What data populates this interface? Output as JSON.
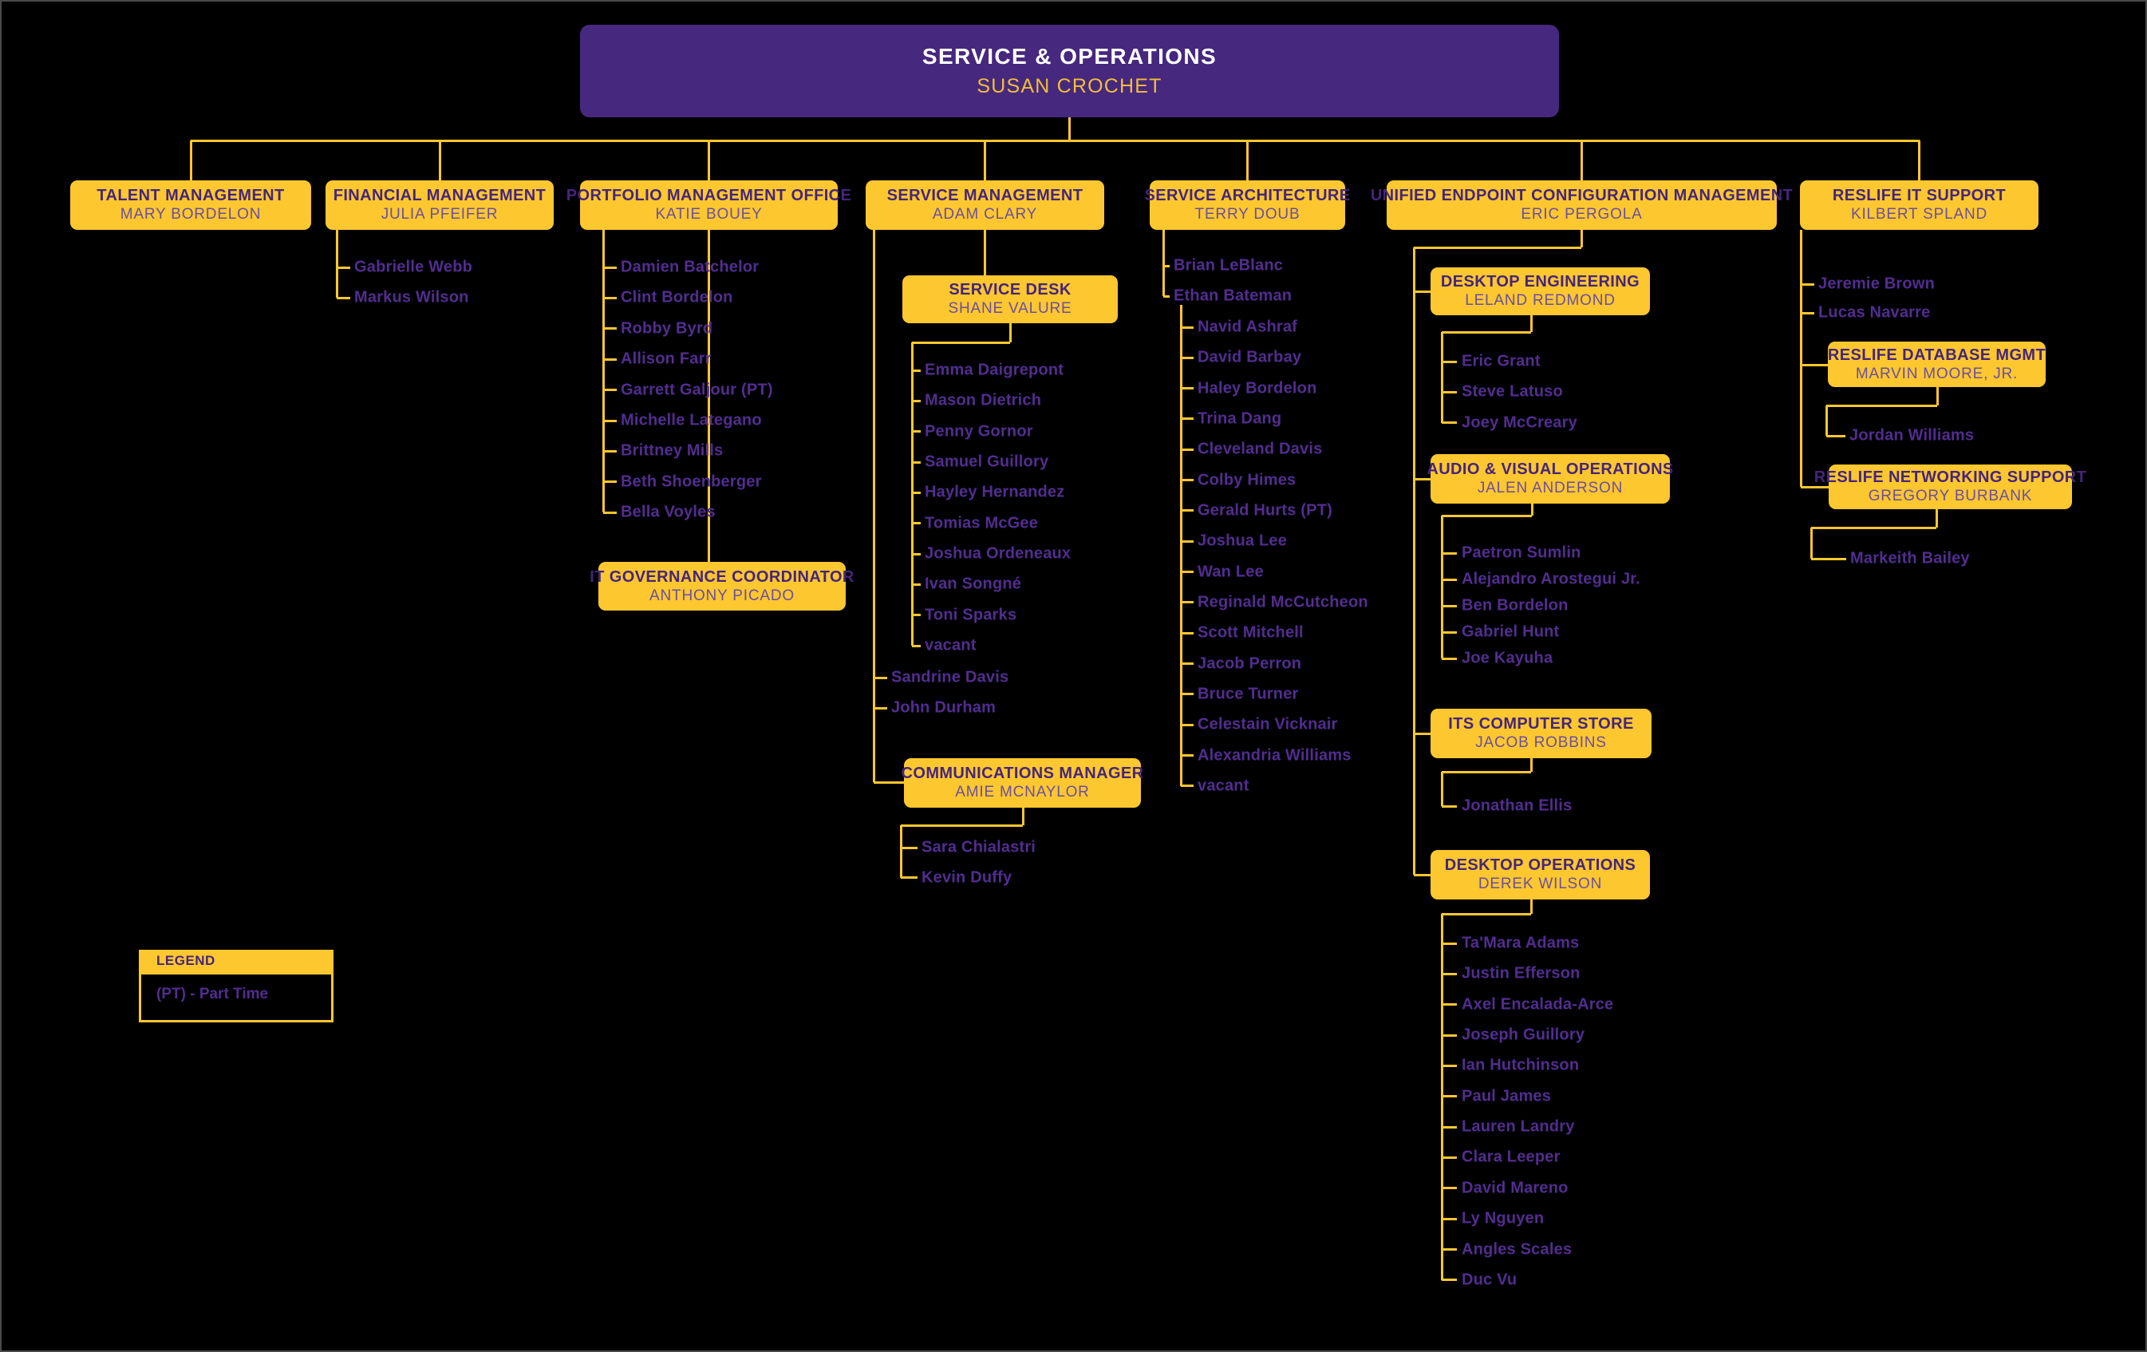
{
  "root": {
    "title": "SERVICE & OPERATIONS",
    "name": "SUSAN CROCHET"
  },
  "legend": {
    "title": "LEGEND",
    "items": [
      "(PT) - Part Time"
    ]
  },
  "colors": {
    "background": "#000000",
    "gold": "#FDC72F",
    "root_purple": "#46287E",
    "title_purple": "#45257C",
    "manager_purple": "#6A4EA0",
    "person_purple": "#522D90",
    "root_title_color": "#FFFFFF",
    "root_name_color": "#F2BE3A"
  },
  "departments": [
    {
      "title": "TALENT MANAGEMENT",
      "name": "MARY BORDELON",
      "reports": []
    },
    {
      "title": "FINANCIAL MANAGEMENT",
      "name": "JULIA PFEIFER",
      "reports": [
        "Gabrielle Webb",
        "Markus Wilson"
      ]
    },
    {
      "title": "PORTFOLIO MANAGEMENT OFFICE",
      "name": "KATIE BOUEY",
      "reports": [
        "Damien Batchelor",
        "Clint Bordelon",
        "Robby Byrd",
        "Allison Farr",
        "Garrett Galjour (PT)",
        "Michelle Lategano",
        "Brittney Mills",
        "Beth Shoenberger",
        "Bella Voyles"
      ],
      "sub_units": [
        {
          "title": "IT GOVERNANCE COORDINATOR",
          "name": "ANTHONY PICADO",
          "reports": []
        }
      ]
    },
    {
      "title": "SERVICE MANAGEMENT",
      "name": "ADAM CLARY",
      "reports": [
        "Sandrine Davis",
        "John Durham"
      ],
      "sub_units": [
        {
          "title": "SERVICE DESK",
          "name": "SHANE VALURE",
          "reports": [
            "Emma Daigrepont",
            "Mason Dietrich",
            "Penny Gornor",
            "Samuel Guillory",
            "Hayley Hernandez",
            "Tomias McGee",
            "Joshua Ordeneaux",
            "Ivan Songné",
            "Toni Sparks",
            "vacant"
          ]
        },
        {
          "title": "COMMUNICATIONS MANAGER",
          "name": "AMIE MCNAYLOR",
          "reports": [
            "Sara Chialastri",
            "Kevin Duffy"
          ]
        }
      ]
    },
    {
      "title": "SERVICE ARCHITECTURE",
      "name": "TERRY DOUB",
      "reports": [
        {
          "name": "Brian LeBlanc",
          "reports": []
        },
        {
          "name": "Ethan Bateman",
          "reports": [
            "Navid Ashraf",
            "David Barbay",
            "Haley Bordelon",
            "Trina Dang",
            "Cleveland Davis",
            "Colby Himes",
            "Gerald Hurts (PT)",
            "Joshua Lee",
            "Wan Lee",
            "Reginald McCutcheon",
            "Scott Mitchell",
            "Jacob Perron",
            "Bruce Turner",
            "Celestain Vicknair",
            "Alexandria Williams",
            "vacant"
          ]
        }
      ]
    },
    {
      "title": "UNIFIED ENDPOINT CONFIGURATION MANAGEMENT",
      "name": "ERIC PERGOLA",
      "sub_units": [
        {
          "title": "DESKTOP ENGINEERING",
          "name": "LELAND REDMOND",
          "reports": [
            "Eric Grant",
            "Steve Latuso",
            "Joey McCreary"
          ]
        },
        {
          "title": "AUDIO & VISUAL OPERATIONS",
          "name": "JALEN ANDERSON",
          "reports": [
            "Paetron Sumlin",
            "Alejandro Arostegui Jr.",
            "Ben Bordelon",
            "Gabriel Hunt",
            "Joe Kayuha"
          ]
        },
        {
          "title": "ITS COMPUTER STORE",
          "name": "JACOB ROBBINS",
          "reports": [
            "Jonathan Ellis"
          ]
        },
        {
          "title": "DESKTOP OPERATIONS",
          "name": "DEREK WILSON",
          "reports": [
            "Ta'Mara Adams",
            "Justin Efferson",
            "Axel Encalada-Arce",
            "Joseph Guillory",
            "Ian Hutchinson",
            "Paul James",
            "Lauren Landry",
            "Clara Leeper",
            "David Mareno",
            "Ly Nguyen",
            "Angles Scales",
            "Duc Vu"
          ]
        }
      ]
    },
    {
      "title": "RESLIFE IT SUPPORT",
      "name": "KILBERT SPLAND",
      "reports": [
        "Jeremie Brown",
        "Lucas Navarre"
      ],
      "sub_units": [
        {
          "title": "RESLIFE DATABASE MGMT",
          "name": "MARVIN MOORE, JR.",
          "reports": [
            "Jordan Williams"
          ]
        },
        {
          "title": "RESLIFE NETWORKING SUPPORT",
          "name": "GREGORY BURBANK",
          "reports": [
            "Markeith Bailey"
          ]
        }
      ]
    }
  ]
}
